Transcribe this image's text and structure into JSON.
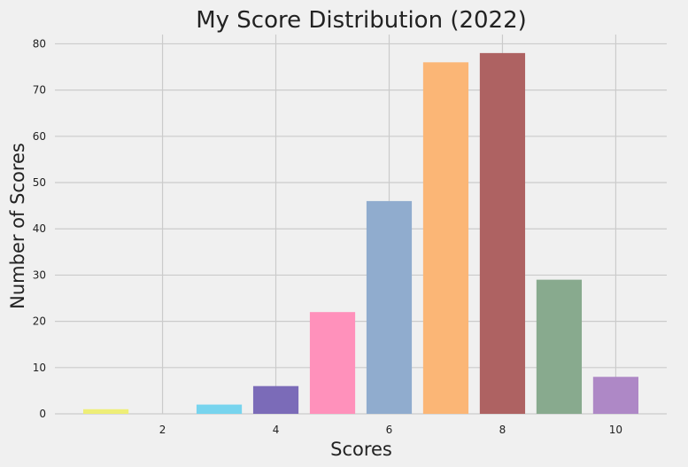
{
  "chart_data": {
    "type": "bar",
    "title": "My Score Distribution (2022)",
    "xlabel": "Scores",
    "ylabel": "Number of Scores",
    "x": [
      1,
      2,
      3,
      4,
      5,
      6,
      7,
      8,
      9,
      10
    ],
    "values": [
      1,
      0,
      2,
      6,
      22,
      46,
      76,
      78,
      29,
      8
    ],
    "colors": [
      "#eeee77",
      "#cccccc",
      "#77d4ee",
      "#7b6bb8",
      "#ff91bb",
      "#90acce",
      "#fbb676",
      "#ae6262",
      "#88aa8e",
      "#ae88c6"
    ],
    "xticks": [
      2,
      4,
      6,
      8,
      10
    ],
    "yticks": [
      0,
      10,
      20,
      30,
      40,
      50,
      60,
      70,
      80
    ],
    "xlim": [
      0.1,
      10.9
    ],
    "ylim": [
      0,
      82
    ],
    "grid": true
  }
}
